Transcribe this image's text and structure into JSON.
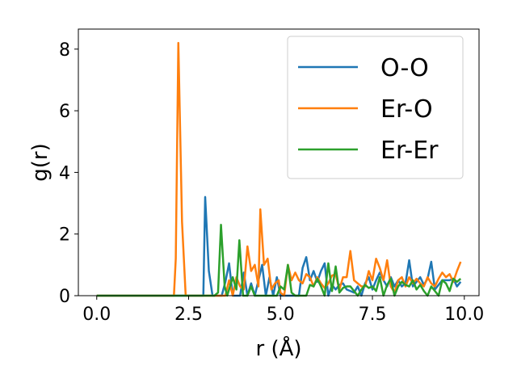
{
  "chart_data": {
    "type": "line",
    "title": "",
    "xlabel": "r (Å)",
    "ylabel": "g(r)",
    "xlim": [
      -0.5,
      10.4
    ],
    "ylim": [
      0,
      8.65
    ],
    "xticks": [
      0.0,
      2.5,
      5.0,
      7.5,
      10.0
    ],
    "xtick_labels": [
      "0.0",
      "2.5",
      "5.0",
      "7.5",
      "10.0"
    ],
    "yticks": [
      0,
      2,
      4,
      6,
      8
    ],
    "ytick_labels": [
      "0",
      "2",
      "4",
      "6",
      "8"
    ],
    "grid": false,
    "legend_position": "top-right",
    "series": [
      {
        "name": "O-O",
        "color": "#1f77b4",
        "points": [
          [
            0,
            0
          ],
          [
            2.8,
            0
          ],
          [
            2.9,
            0
          ],
          [
            2.95,
            3.2
          ],
          [
            3.05,
            0.8
          ],
          [
            3.15,
            0
          ],
          [
            3.4,
            0
          ],
          [
            3.5,
            0.45
          ],
          [
            3.6,
            1.05
          ],
          [
            3.7,
            0
          ],
          [
            3.9,
            0
          ],
          [
            4.0,
            0.75
          ],
          [
            4.1,
            0
          ],
          [
            4.2,
            0.4
          ],
          [
            4.3,
            0
          ],
          [
            4.5,
            1.0
          ],
          [
            4.6,
            0
          ],
          [
            4.7,
            0.6
          ],
          [
            4.8,
            0
          ],
          [
            4.9,
            0.6
          ],
          [
            5.0,
            0
          ],
          [
            5.5,
            0
          ],
          [
            5.6,
            0.9
          ],
          [
            5.7,
            1.25
          ],
          [
            5.8,
            0.5
          ],
          [
            5.9,
            0.8
          ],
          [
            6.0,
            0.45
          ],
          [
            6.1,
            0.8
          ],
          [
            6.2,
            1.05
          ],
          [
            6.3,
            0
          ],
          [
            6.4,
            0.35
          ],
          [
            6.5,
            0.2
          ],
          [
            6.6,
            0.35
          ],
          [
            6.7,
            0.4
          ],
          [
            6.8,
            0.2
          ],
          [
            6.9,
            0.15
          ],
          [
            7.0,
            0.1
          ],
          [
            7.1,
            0.3
          ],
          [
            7.2,
            0
          ],
          [
            7.3,
            0.4
          ],
          [
            7.4,
            0.6
          ],
          [
            7.5,
            0.2
          ],
          [
            7.6,
            0.5
          ],
          [
            7.7,
            0.75
          ],
          [
            7.8,
            0.5
          ],
          [
            7.9,
            0.3
          ],
          [
            8.0,
            0.6
          ],
          [
            8.1,
            0.3
          ],
          [
            8.2,
            0.5
          ],
          [
            8.3,
            0.3
          ],
          [
            8.4,
            0.4
          ],
          [
            8.5,
            1.15
          ],
          [
            8.6,
            0.3
          ],
          [
            8.7,
            0.45
          ],
          [
            8.8,
            0.6
          ],
          [
            8.9,
            0.35
          ],
          [
            9.0,
            0.55
          ],
          [
            9.1,
            1.1
          ],
          [
            9.2,
            0.2
          ],
          [
            9.3,
            0.35
          ],
          [
            9.4,
            0.5
          ],
          [
            9.5,
            0.5
          ],
          [
            9.6,
            0.5
          ],
          [
            9.7,
            0.55
          ],
          [
            9.8,
            0.3
          ],
          [
            9.9,
            0.45
          ]
        ]
      },
      {
        "name": "Er-O",
        "color": "#ff7f0e",
        "points": [
          [
            0,
            0
          ],
          [
            2.1,
            0
          ],
          [
            2.15,
            1.2
          ],
          [
            2.22,
            8.2
          ],
          [
            2.32,
            2.4
          ],
          [
            2.42,
            0
          ],
          [
            3.5,
            0
          ],
          [
            3.6,
            0.5
          ],
          [
            3.7,
            0
          ],
          [
            3.8,
            0.6
          ],
          [
            3.9,
            0.3
          ],
          [
            4.0,
            0.2
          ],
          [
            4.1,
            1.6
          ],
          [
            4.2,
            0.8
          ],
          [
            4.3,
            1.0
          ],
          [
            4.4,
            0.3
          ],
          [
            4.45,
            2.8
          ],
          [
            4.55,
            1.0
          ],
          [
            4.65,
            1.2
          ],
          [
            4.75,
            0.2
          ],
          [
            4.85,
            0.4
          ],
          [
            4.95,
            0.5
          ],
          [
            5.0,
            0.1
          ],
          [
            5.1,
            0
          ],
          [
            5.2,
            1.0
          ],
          [
            5.3,
            0.5
          ],
          [
            5.4,
            0.75
          ],
          [
            5.5,
            0.5
          ],
          [
            5.6,
            0.4
          ],
          [
            5.7,
            0.7
          ],
          [
            5.8,
            0.6
          ],
          [
            5.9,
            0.3
          ],
          [
            6.0,
            0.6
          ],
          [
            6.1,
            0.4
          ],
          [
            6.2,
            0.25
          ],
          [
            6.3,
            0.4
          ],
          [
            6.4,
            0.65
          ],
          [
            6.5,
            0.7
          ],
          [
            6.6,
            0.2
          ],
          [
            6.7,
            0.6
          ],
          [
            6.8,
            0.6
          ],
          [
            6.9,
            1.45
          ],
          [
            7.0,
            0.5
          ],
          [
            7.1,
            0.4
          ],
          [
            7.2,
            0.3
          ],
          [
            7.3,
            0.3
          ],
          [
            7.4,
            0.8
          ],
          [
            7.5,
            0.5
          ],
          [
            7.6,
            1.2
          ],
          [
            7.7,
            0.9
          ],
          [
            7.8,
            0.5
          ],
          [
            7.9,
            1.15
          ],
          [
            8.0,
            0.3
          ],
          [
            8.1,
            0.1
          ],
          [
            8.2,
            0.5
          ],
          [
            8.3,
            0.6
          ],
          [
            8.4,
            0.3
          ],
          [
            8.5,
            0.6
          ],
          [
            8.6,
            0.4
          ],
          [
            8.7,
            0.55
          ],
          [
            8.8,
            0.4
          ],
          [
            8.9,
            0.3
          ],
          [
            9.0,
            0.6
          ],
          [
            9.1,
            0.4
          ],
          [
            9.2,
            0.3
          ],
          [
            9.3,
            0.55
          ],
          [
            9.4,
            0.75
          ],
          [
            9.5,
            0.6
          ],
          [
            9.6,
            0.7
          ],
          [
            9.7,
            0.45
          ],
          [
            9.8,
            0.8
          ],
          [
            9.9,
            1.1
          ]
        ]
      },
      {
        "name": "Er-Er",
        "color": "#2ca02c",
        "points": [
          [
            0,
            0
          ],
          [
            3.2,
            0
          ],
          [
            3.3,
            0.1
          ],
          [
            3.38,
            2.3
          ],
          [
            3.48,
            0.3
          ],
          [
            3.55,
            0
          ],
          [
            3.7,
            0.6
          ],
          [
            3.8,
            0.2
          ],
          [
            3.88,
            1.8
          ],
          [
            3.98,
            0
          ],
          [
            4.1,
            0
          ],
          [
            4.2,
            0.3
          ],
          [
            4.3,
            0
          ],
          [
            4.9,
            0
          ],
          [
            5.0,
            0.3
          ],
          [
            5.1,
            0.2
          ],
          [
            5.2,
            1.0
          ],
          [
            5.3,
            0.1
          ],
          [
            5.4,
            0
          ],
          [
            5.7,
            0
          ],
          [
            5.8,
            0.35
          ],
          [
            5.9,
            0.3
          ],
          [
            6.0,
            0.55
          ],
          [
            6.1,
            0.3
          ],
          [
            6.2,
            0
          ],
          [
            6.3,
            1.05
          ],
          [
            6.4,
            0.15
          ],
          [
            6.5,
            0.95
          ],
          [
            6.6,
            0.1
          ],
          [
            6.7,
            0.25
          ],
          [
            6.8,
            0.3
          ],
          [
            6.9,
            0.3
          ],
          [
            7.0,
            0.15
          ],
          [
            7.1,
            0
          ],
          [
            7.2,
            0.2
          ],
          [
            7.3,
            0.35
          ],
          [
            7.4,
            0.25
          ],
          [
            7.5,
            0.3
          ],
          [
            7.6,
            0.15
          ],
          [
            7.7,
            0.6
          ],
          [
            7.8,
            0
          ],
          [
            7.9,
            0.35
          ],
          [
            8.0,
            0.55
          ],
          [
            8.1,
            0
          ],
          [
            8.2,
            0.3
          ],
          [
            8.3,
            0.45
          ],
          [
            8.4,
            0.35
          ],
          [
            8.5,
            0.3
          ],
          [
            8.6,
            0.5
          ],
          [
            8.7,
            0.2
          ],
          [
            8.8,
            0.35
          ],
          [
            8.9,
            0.15
          ],
          [
            9.0,
            0
          ],
          [
            9.1,
            0.3
          ],
          [
            9.2,
            0.15
          ],
          [
            9.3,
            0
          ],
          [
            9.4,
            0.5
          ],
          [
            9.5,
            0.4
          ],
          [
            9.6,
            0.15
          ],
          [
            9.7,
            0.55
          ],
          [
            9.8,
            0.45
          ],
          [
            9.9,
            0.55
          ]
        ]
      }
    ]
  }
}
